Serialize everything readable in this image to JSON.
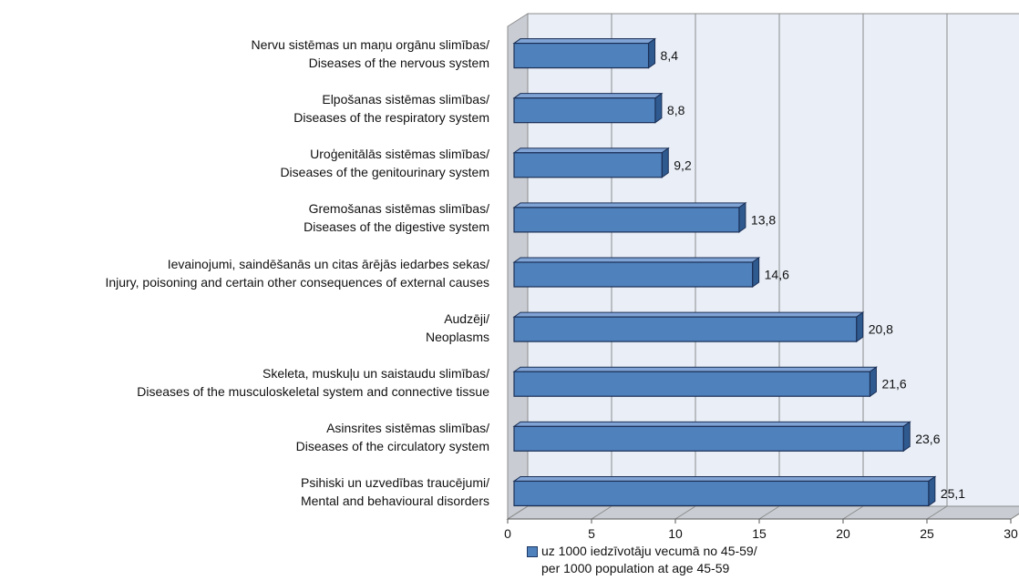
{
  "colors": {
    "bar": "#4f81bd",
    "bar_top": "#7fa3d4",
    "bar_side": "#2f5a90",
    "bar_outline": "#1b2f55",
    "wall": "#e9eef7",
    "floor": "#c9cdd3",
    "grid": "#8c8c8c"
  },
  "chart_data": {
    "type": "bar",
    "orientation": "horizontal",
    "three_d": true,
    "xlim": [
      0,
      30
    ],
    "x_ticks": [
      "0",
      "5",
      "10",
      "15",
      "20",
      "25",
      "30"
    ],
    "grid": true,
    "legend_position": "bottom",
    "categories": [
      {
        "line1": "Nervu sistēmas un maņu orgānu slimības/",
        "line2": "Diseases of the nervous system"
      },
      {
        "line1": "Elpošanas sistēmas slimības/",
        "line2": "Diseases of the respiratory system"
      },
      {
        "line1": "Uroģenitālās sistēmas slimības/",
        "line2": "Diseases of the genitourinary system"
      },
      {
        "line1": "Gremošanas sistēmas slimības/",
        "line2": "Diseases of the digestive system"
      },
      {
        "line1": "Ievainojumi, saindēšanās un citas ārējās iedarbes sekas/",
        "line2": "Injury, poisoning and certain other consequences of external causes"
      },
      {
        "line1": "Audzēji/",
        "line2": "Neoplasms"
      },
      {
        "line1": "Skeleta, muskuļu un saistaudu slimības/",
        "line2": "Diseases of the musculoskeletal system and connective tissue"
      },
      {
        "line1": "Asinsrites sistēmas slimības/",
        "line2": "Diseases of the circulatory system"
      },
      {
        "line1": "Psihiski un uzvedības traucējumi/",
        "line2": "Mental and behavioural disorders"
      }
    ],
    "values": [
      8.4,
      8.8,
      9.2,
      13.8,
      14.6,
      20.8,
      21.6,
      23.6,
      25.1
    ],
    "value_labels": [
      "8,4",
      "8,8",
      "9,2",
      "13,8",
      "14,6",
      "20,8",
      "21,6",
      "23,6",
      "25,1"
    ],
    "series": [
      {
        "name": "uz 1000 iedzīvotāju vecumā no 45-59/ per 1000 population at age 45-59"
      }
    ],
    "legend": {
      "line1": "uz 1000 iedzīvotāju vecumā no 45-59/",
      "line2": "per 1000 population at age 45-59"
    }
  }
}
